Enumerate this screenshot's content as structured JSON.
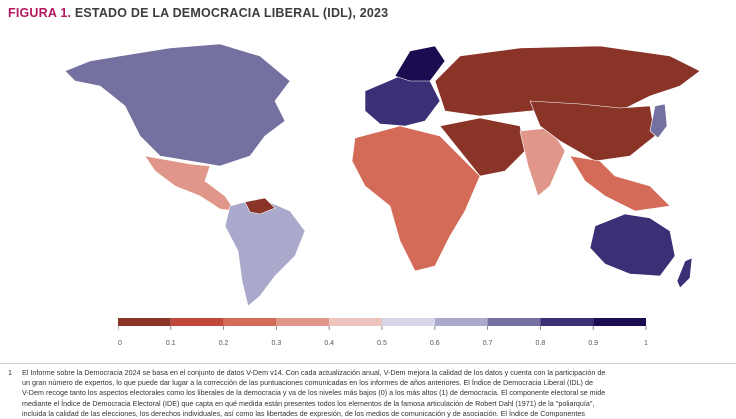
{
  "title": {
    "prefix": "FIGURA 1.",
    "text": "ESTADO DE LA DEMOCRACIA LIBERAL (IDL), 2023"
  },
  "chart_data": {
    "type": "choropleth",
    "title": "FIGURA 1. ESTADO DE LA DEMOCRACIA LIBERAL (IDL), 2023",
    "legend": {
      "ticks": [
        "0",
        "0.1",
        "0.2",
        "0.3",
        "0.4",
        "0.5",
        "0.6",
        "0.7",
        "0.8",
        "0.9",
        "1"
      ],
      "colors": [
        "#8a3428",
        "#c1473a",
        "#d46a58",
        "#e0978a",
        "#eec3bd",
        "#d6d6e6",
        "#aaa8cb",
        "#74709f",
        "#3b2f76",
        "#1b0c52"
      ],
      "placement": "bottom"
    },
    "regions": [
      {
        "name": "North America",
        "value": 0.75
      },
      {
        "name": "Mexico & Central America",
        "value": 0.3
      },
      {
        "name": "South America",
        "value": 0.6
      },
      {
        "name": "Venezuela",
        "value": 0.05
      },
      {
        "name": "Western Europe",
        "value": 0.8
      },
      {
        "name": "Nordics",
        "value": 0.9
      },
      {
        "name": "Russia",
        "value": 0.05
      },
      {
        "name": "Africa",
        "value": 0.2
      },
      {
        "name": "Middle East",
        "value": 0.05
      },
      {
        "name": "India",
        "value": 0.3
      },
      {
        "name": "China",
        "value": 0.05
      },
      {
        "name": "Southeast Asia",
        "value": 0.25
      },
      {
        "name": "Japan",
        "value": 0.75
      },
      {
        "name": "Australia",
        "value": 0.85
      },
      {
        "name": "New Zealand",
        "value": 0.85
      }
    ]
  },
  "footnote": {
    "number": "1",
    "lines": [
      "El Informe sobre la Democracia 2024 se basa en el conjunto de datos V-Dem v14. Con cada actualización anual, V-Dem mejora la calidad de los datos y cuenta con la participación de",
      "un gran número de expertos, lo que puede dar lugar a la corrección de las puntuaciones comunicadas en los informes de años anteriores. El Índice de Democracia Liberal (IDL) de",
      "V-Dem recoge tanto los aspectos electorales como los liberales de la democracia y va de los niveles más bajos (0) a los más altos (1) de democracia. El componente electoral se mide",
      "mediante el Índice de Democracia Electoral (IDE) que capta en qué medida están presentes todos los elementos de la famosa articulación de Robert Dahl (1971) de la \"poliarquía\",",
      "incluida la calidad de las elecciones, los derechos individuales, así como las libertades de expresión, de los medios de comunicación y de asociación. El Índice de Componentes"
    ]
  }
}
